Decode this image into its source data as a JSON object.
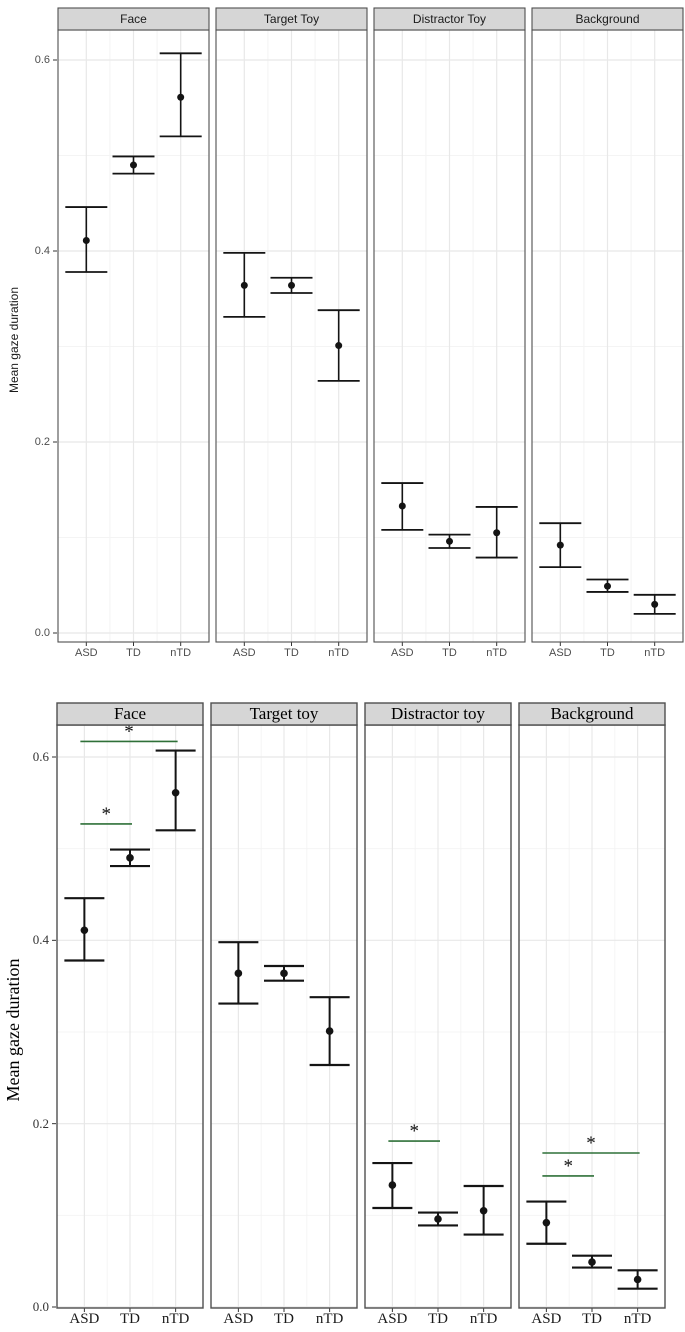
{
  "colors": {
    "background": "#ffffff",
    "point": "#141414",
    "error_bar": "#141414",
    "sig_line": "#2f7038",
    "asterisk": "#111111",
    "strip_fill": "#d6d6d6",
    "strip_border": "#4f4f4f",
    "panel_border": "#4f4f4f",
    "grid_major": "#e8e8e8",
    "grid_minor": "#f4f4f4",
    "tick_mark": "#333333"
  },
  "chart_data": [
    {
      "id": "top-plot",
      "type": "scatter",
      "subtype": "point-with-error-bars",
      "font_style": "sans-serif",
      "ylabel": "Mean gaze duration",
      "ytick_labels": [
        "0.6",
        "0.4",
        "0.2",
        "0.0"
      ],
      "ytick_values": [
        0.6,
        0.4,
        0.2,
        0.0
      ],
      "ylim": [
        -0.01,
        0.63
      ],
      "grid": true,
      "legend": "none",
      "categories": [
        "ASD",
        "TD",
        "nTD"
      ],
      "facets": [
        {
          "label": "Face",
          "points": [
            {
              "group": "ASD",
              "mean": 0.411,
              "lower": 0.378,
              "upper": 0.446
            },
            {
              "group": "TD",
              "mean": 0.49,
              "lower": 0.481,
              "upper": 0.499
            },
            {
              "group": "nTD",
              "mean": 0.561,
              "lower": 0.52,
              "upper": 0.607
            }
          ],
          "significance": []
        },
        {
          "label": "Target Toy",
          "points": [
            {
              "group": "ASD",
              "mean": 0.364,
              "lower": 0.331,
              "upper": 0.398
            },
            {
              "group": "TD",
              "mean": 0.364,
              "lower": 0.356,
              "upper": 0.372
            },
            {
              "group": "nTD",
              "mean": 0.301,
              "lower": 0.264,
              "upper": 0.338
            }
          ],
          "significance": []
        },
        {
          "label": "Distractor Toy",
          "points": [
            {
              "group": "ASD",
              "mean": 0.133,
              "lower": 0.108,
              "upper": 0.157
            },
            {
              "group": "TD",
              "mean": 0.096,
              "lower": 0.089,
              "upper": 0.103
            },
            {
              "group": "nTD",
              "mean": 0.105,
              "lower": 0.079,
              "upper": 0.132
            }
          ],
          "significance": []
        },
        {
          "label": "Background",
          "points": [
            {
              "group": "ASD",
              "mean": 0.092,
              "lower": 0.069,
              "upper": 0.115
            },
            {
              "group": "TD",
              "mean": 0.049,
              "lower": 0.043,
              "upper": 0.056
            },
            {
              "group": "nTD",
              "mean": 0.03,
              "lower": 0.02,
              "upper": 0.04
            }
          ],
          "significance": []
        }
      ]
    },
    {
      "id": "bottom-plot",
      "type": "scatter",
      "subtype": "point-with-error-bars-and-significance",
      "font_style": "serif",
      "ylabel": "Mean gaze duration",
      "ytick_labels": [
        "0.6",
        "0.4",
        "0.2",
        "0.0"
      ],
      "ytick_values": [
        0.6,
        0.4,
        0.2,
        0.0
      ],
      "ylim": [
        -0.01,
        0.636
      ],
      "grid": true,
      "legend": "none",
      "categories": [
        "ASD",
        "TD",
        "nTD"
      ],
      "facets": [
        {
          "label": "Face",
          "points": [
            {
              "group": "ASD",
              "mean": 0.411,
              "lower": 0.378,
              "upper": 0.446
            },
            {
              "group": "TD",
              "mean": 0.49,
              "lower": 0.481,
              "upper": 0.499
            },
            {
              "group": "nTD",
              "mean": 0.561,
              "lower": 0.52,
              "upper": 0.607
            }
          ],
          "significance": [
            {
              "from": "ASD",
              "to": "TD",
              "y": 0.527,
              "label": "*"
            },
            {
              "from": "ASD",
              "to": "nTD",
              "y": 0.617,
              "label": "*"
            }
          ]
        },
        {
          "label": "Target toy",
          "points": [
            {
              "group": "ASD",
              "mean": 0.364,
              "lower": 0.331,
              "upper": 0.398
            },
            {
              "group": "TD",
              "mean": 0.364,
              "lower": 0.356,
              "upper": 0.372
            },
            {
              "group": "nTD",
              "mean": 0.301,
              "lower": 0.264,
              "upper": 0.338
            }
          ],
          "significance": []
        },
        {
          "label": "Distractor toy",
          "points": [
            {
              "group": "ASD",
              "mean": 0.133,
              "lower": 0.108,
              "upper": 0.157
            },
            {
              "group": "TD",
              "mean": 0.096,
              "lower": 0.089,
              "upper": 0.103
            },
            {
              "group": "nTD",
              "mean": 0.105,
              "lower": 0.079,
              "upper": 0.132
            }
          ],
          "significance": [
            {
              "from": "ASD",
              "to": "TD",
              "y": 0.181,
              "label": "*"
            }
          ]
        },
        {
          "label": "Background",
          "points": [
            {
              "group": "ASD",
              "mean": 0.092,
              "lower": 0.069,
              "upper": 0.115
            },
            {
              "group": "TD",
              "mean": 0.049,
              "lower": 0.043,
              "upper": 0.056
            },
            {
              "group": "nTD",
              "mean": 0.03,
              "lower": 0.02,
              "upper": 0.04
            }
          ],
          "significance": [
            {
              "from": "ASD",
              "to": "TD",
              "y": 0.143,
              "label": "*"
            },
            {
              "from": "ASD",
              "to": "nTD",
              "y": 0.168,
              "label": "*"
            }
          ]
        }
      ]
    }
  ]
}
